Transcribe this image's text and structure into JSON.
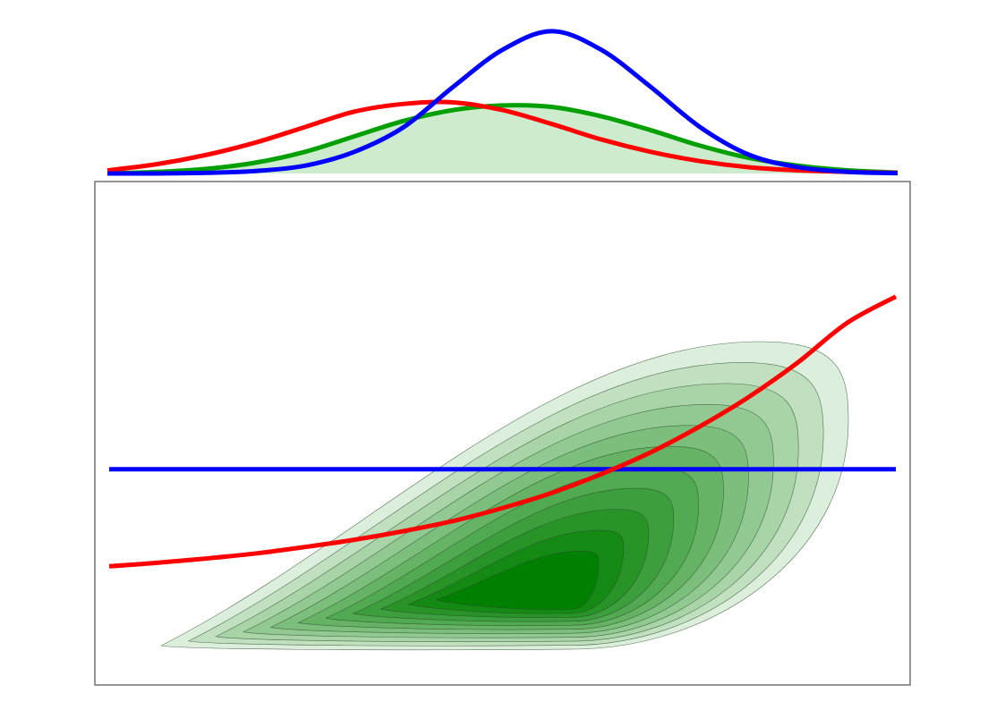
{
  "chart_data": [
    {
      "type": "line",
      "panel": "marginal-top",
      "title": "",
      "xlabel": "",
      "ylabel": "",
      "x": [
        -4.0,
        -3.5,
        -3.0,
        -2.5,
        -2.0,
        -1.5,
        -1.0,
        -0.5,
        0.0,
        0.5,
        1.0,
        1.5,
        2.0,
        2.5,
        3.0,
        3.5,
        4.0
      ],
      "series": [
        {
          "color": "#00a000",
          "fill": "#cdeccd",
          "values": [
            0.0,
            0.005,
            0.015,
            0.035,
            0.07,
            0.12,
            0.17,
            0.205,
            0.22,
            0.215,
            0.185,
            0.14,
            0.09,
            0.05,
            0.025,
            0.01,
            0.003
          ]
        },
        {
          "color": "#ff0000",
          "values": [
            0.01,
            0.03,
            0.06,
            0.1,
            0.15,
            0.2,
            0.225,
            0.23,
            0.205,
            0.16,
            0.11,
            0.07,
            0.04,
            0.02,
            0.01,
            0.005,
            0.002
          ]
        },
        {
          "color": "#0000ff",
          "values": [
            0.0,
            0.0,
            0.002,
            0.008,
            0.025,
            0.07,
            0.15,
            0.28,
            0.4,
            0.46,
            0.4,
            0.28,
            0.15,
            0.06,
            0.02,
            0.005,
            0.001
          ]
        }
      ],
      "ylim": [
        0,
        0.48
      ],
      "grid": false
    },
    {
      "type": "contour",
      "panel": "main",
      "title": "",
      "xlabel": "",
      "ylabel": "",
      "xlim": [
        -4,
        4
      ],
      "ylim": [
        -3,
        4
      ],
      "colormap": "greens",
      "levels": 11,
      "frame_color": "#707070",
      "grid": false,
      "series": [
        {
          "color": "#0000ff",
          "type": "line",
          "x": [
            -4.0,
            4.0
          ],
          "y": [
            0.0,
            0.0
          ]
        },
        {
          "color": "#ff0000",
          "type": "line",
          "x": [
            -4.0,
            -3.5,
            -3.0,
            -2.5,
            -2.0,
            -1.5,
            -1.0,
            -0.5,
            0.0,
            0.5,
            1.0,
            1.5,
            2.0,
            2.5,
            3.0,
            3.5,
            4.0
          ],
          "y": [
            -1.35,
            -1.3,
            -1.24,
            -1.17,
            -1.08,
            -0.98,
            -0.86,
            -0.72,
            -0.54,
            -0.33,
            -0.07,
            0.23,
            0.59,
            1.0,
            1.48,
            2.03,
            2.4
          ]
        }
      ]
    }
  ]
}
